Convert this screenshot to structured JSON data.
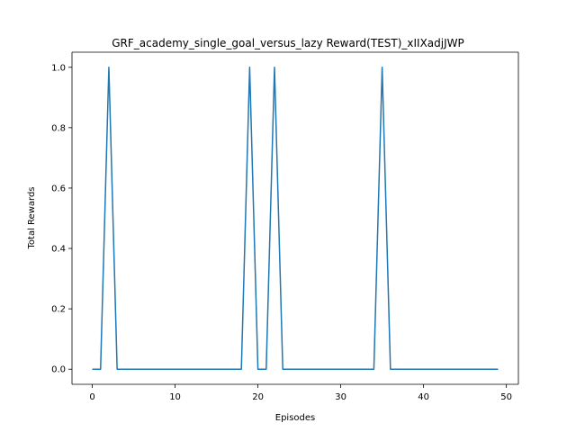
{
  "chart_data": {
    "type": "line",
    "title": "GRF_academy_single_goal_versus_lazy Reward(TEST)_xIIXadjJWP",
    "xlabel": "Episodes",
    "ylabel": "Total Rewards",
    "xlim": [
      -2.45,
      51.45
    ],
    "ylim": [
      -0.05,
      1.05
    ],
    "xticks": [
      0,
      10,
      20,
      30,
      40,
      50
    ],
    "yticks": [
      0.0,
      0.2,
      0.4,
      0.6,
      0.8,
      1.0
    ],
    "xtick_labels": [
      "0",
      "10",
      "20",
      "30",
      "40",
      "50"
    ],
    "ytick_labels": [
      "0.0",
      "0.2",
      "0.4",
      "0.6",
      "0.8",
      "1.0"
    ],
    "grid": false,
    "series": [
      {
        "color": "#1f77b4",
        "x": [
          0,
          1,
          2,
          3,
          4,
          5,
          6,
          7,
          8,
          9,
          10,
          11,
          12,
          13,
          14,
          15,
          16,
          17,
          18,
          19,
          20,
          21,
          22,
          23,
          24,
          25,
          26,
          27,
          28,
          29,
          30,
          31,
          32,
          33,
          34,
          35,
          36,
          37,
          38,
          39,
          40,
          41,
          42,
          43,
          44,
          45,
          46,
          47,
          48,
          49
        ],
        "values": [
          0,
          0,
          1,
          0,
          0,
          0,
          0,
          0,
          0,
          0,
          0,
          0,
          0,
          0,
          0,
          0,
          0,
          0,
          0,
          1,
          0,
          0,
          1,
          0,
          0,
          0,
          0,
          0,
          0,
          0,
          0,
          0,
          0,
          0,
          0,
          1,
          0,
          0,
          0,
          0,
          0,
          0,
          0,
          0,
          0,
          0,
          0,
          0,
          0,
          0
        ]
      }
    ]
  }
}
